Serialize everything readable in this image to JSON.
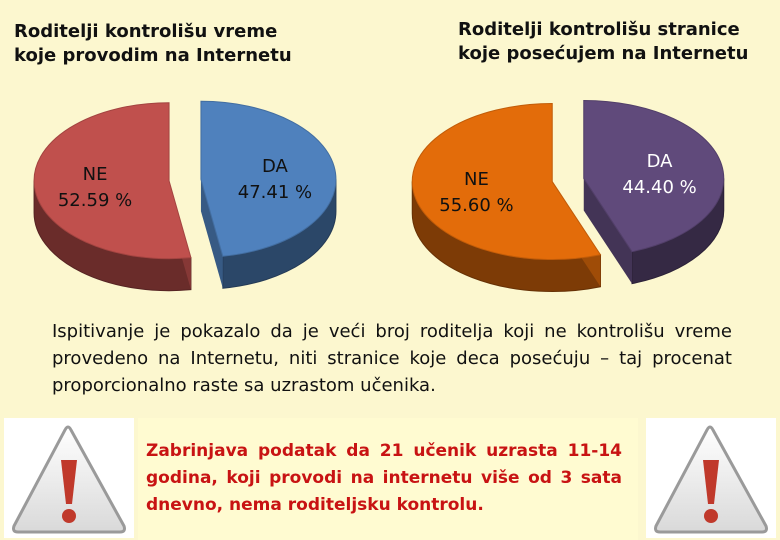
{
  "titles": {
    "left": [
      "Roditelji kontrolišu vreme",
      "koje provodim na Internetu"
    ],
    "right": [
      "Roditelji kontrolišu stranice",
      "koje posećujem na Internetu"
    ]
  },
  "colors": {
    "background": "#fcf7cf",
    "ne_left": "#c0504d",
    "da_left": "#4f81bd",
    "ne_right": "#e36c0a",
    "da_right": "#604a7b",
    "warning_text": "#c81313"
  },
  "chart_data": [
    {
      "type": "pie",
      "title": "Roditelji kontrolišu vreme koje provodim na Internetu",
      "slices": [
        {
          "category": "NE",
          "value": 52.59,
          "label": "52.59 %"
        },
        {
          "category": "DA",
          "value": 47.41,
          "label": "47.41 %"
        }
      ]
    },
    {
      "type": "pie",
      "title": "Roditelji kontrolišu stranice koje posećujem na Internetu",
      "slices": [
        {
          "category": "NE",
          "value": 55.6,
          "label": "55.60 %"
        },
        {
          "category": "DA",
          "value": 44.4,
          "label": "44.40 %"
        }
      ]
    }
  ],
  "paragraph": "Ispitivanje je pokazalo da je veći broj roditelja koji ne kontrolišu vreme provedeno na Internetu, niti stranice koje deca posećuju – taj procenat proporcionalno raste sa uzrastom učenika.",
  "warning": {
    "text": "Zabrinjava podatak da 21 učenik uzrasta 11-14 godina, koji provodi na internetu više od 3 sata dnevno, nema roditeljsku kontrolu.",
    "symbol": "!",
    "icon": "warning-triangle-icon"
  }
}
